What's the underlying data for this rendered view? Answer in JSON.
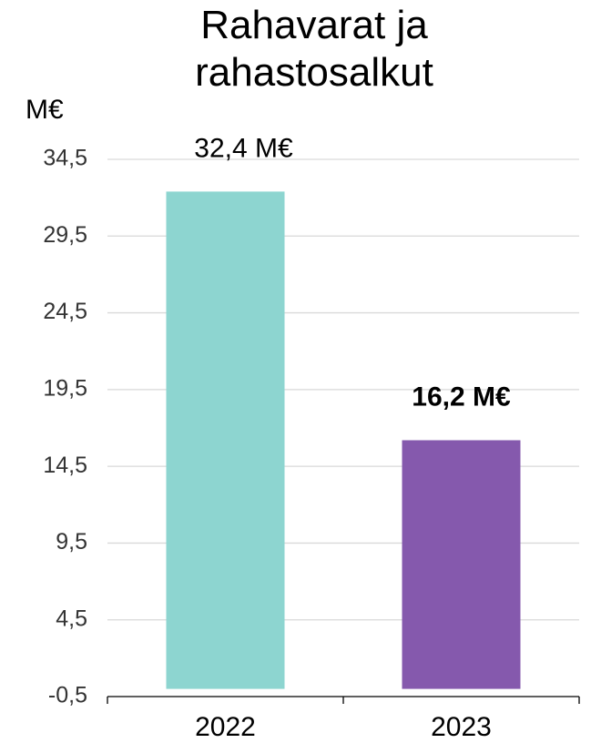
{
  "chart_data": {
    "type": "bar",
    "title": "Rahavarat ja rahastosalkut",
    "y_axis_label": "M€",
    "categories": [
      "2022",
      "2023"
    ],
    "values": [
      32.4,
      16.2
    ],
    "value_labels": [
      "32,4 M€",
      "16,2 M€"
    ],
    "value_label_weight": [
      "normal",
      "bold"
    ],
    "colors": [
      "#8dd5d0",
      "#8559ad"
    ],
    "ylim": [
      -0.5,
      34.5
    ],
    "yticks": [
      {
        "value": -0.5,
        "label": "-0,5"
      },
      {
        "value": 4.5,
        "label": "4,5"
      },
      {
        "value": 9.5,
        "label": "9,5"
      },
      {
        "value": 14.5,
        "label": "14,5"
      },
      {
        "value": 19.5,
        "label": "19,5"
      },
      {
        "value": 24.5,
        "label": "24,5"
      },
      {
        "value": 29.5,
        "label": "29,5"
      },
      {
        "value": 34.5,
        "label": "34,5"
      }
    ],
    "grid": true
  }
}
